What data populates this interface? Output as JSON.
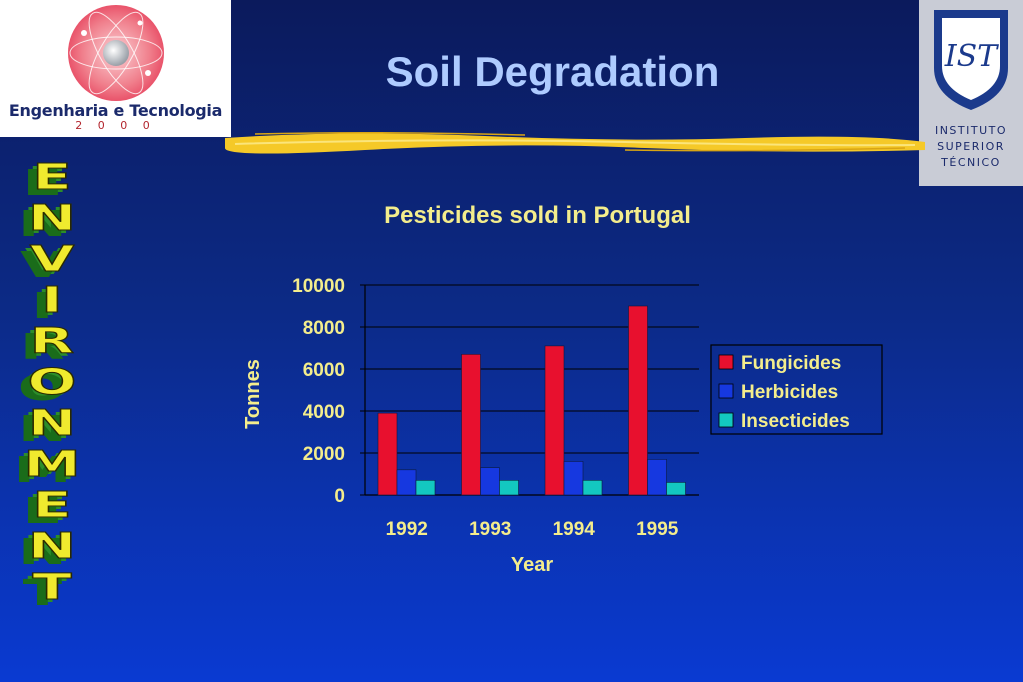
{
  "slide": {
    "title": "Soil Degradation",
    "side_word": "ENVIRONMENT",
    "left_logo": {
      "text": "Engenharia e Tecnologia",
      "year": "2 0 0 0"
    },
    "right_logo": {
      "lines": [
        "INSTITUTO",
        "SUPERIOR",
        "TÉCNICO"
      ],
      "mark": "IST"
    }
  },
  "chart_data": {
    "type": "bar",
    "title": "Pesticides sold in Portugal",
    "xlabel": "Year",
    "ylabel": "Tonnes",
    "categories": [
      "1992",
      "1993",
      "1994",
      "1995"
    ],
    "series": [
      {
        "name": "Fungicides",
        "values": [
          3900,
          6700,
          7100,
          9000
        ],
        "color": "#e8102e"
      },
      {
        "name": "Herbicides",
        "values": [
          1200,
          1300,
          1600,
          1700
        ],
        "color": "#1638e0"
      },
      {
        "name": "Insecticides",
        "values": [
          700,
          700,
          700,
          600
        ],
        "color": "#13c8c0"
      }
    ],
    "ylim": [
      0,
      10000
    ],
    "yticks": [
      "0",
      "2000",
      "4000",
      "6000",
      "8000",
      "10000"
    ],
    "grid": true,
    "legend": "right"
  }
}
